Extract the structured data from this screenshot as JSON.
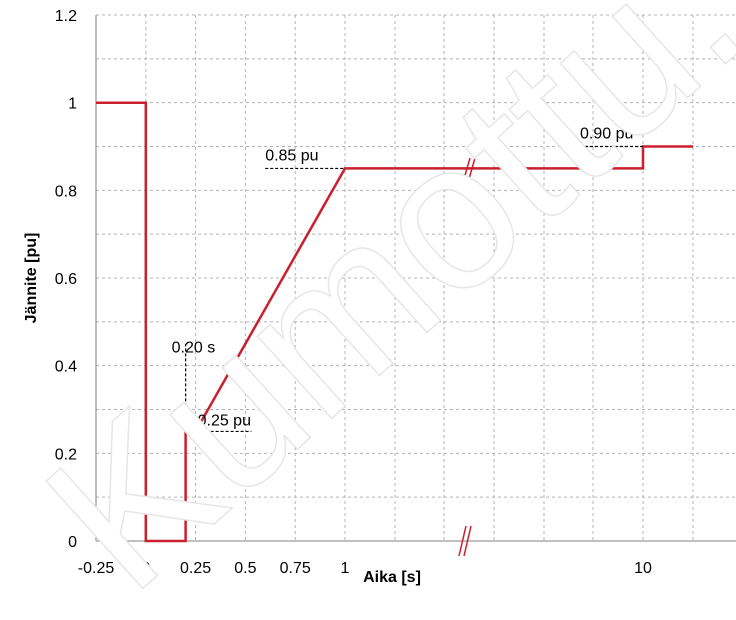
{
  "chart_data": {
    "type": "line",
    "xlabel": "Aika [s]",
    "ylabel": "Jännite [pu]",
    "ylim": [
      0,
      1.2
    ],
    "y_ticks": [
      "0",
      "0.2",
      "0.4",
      "0.6",
      "0.8",
      "1",
      "1.2"
    ],
    "y_tick_values": [
      0,
      0.2,
      0.4,
      0.6,
      0.8,
      1.0,
      1.2
    ],
    "x_ticks": [
      "-0.25",
      "0",
      "0.25",
      "0.5",
      "0.75",
      "1",
      "10"
    ],
    "x_tick_values": [
      -0.25,
      0,
      0.25,
      0.5,
      0.75,
      1,
      10
    ],
    "axis_break": "between 1 and 10",
    "grid": true,
    "series": [
      {
        "color": "#cc1f2d",
        "points": [
          [
            -0.25,
            1.0
          ],
          [
            0,
            1.0
          ],
          [
            0,
            0
          ],
          [
            0.2,
            0
          ],
          [
            0.2,
            0.25
          ],
          [
            0.25,
            0.25
          ],
          [
            1.0,
            0.85
          ],
          [
            10,
            0.85
          ],
          [
            10,
            0.9
          ],
          [
            11,
            0.9
          ]
        ]
      }
    ],
    "annotations": {
      "t1": "0.20 s",
      "v1": "0.25 pu",
      "v2": "0.85 pu",
      "v3": "0.90 pu"
    },
    "watermark": "Kumottu. Voimassa"
  }
}
